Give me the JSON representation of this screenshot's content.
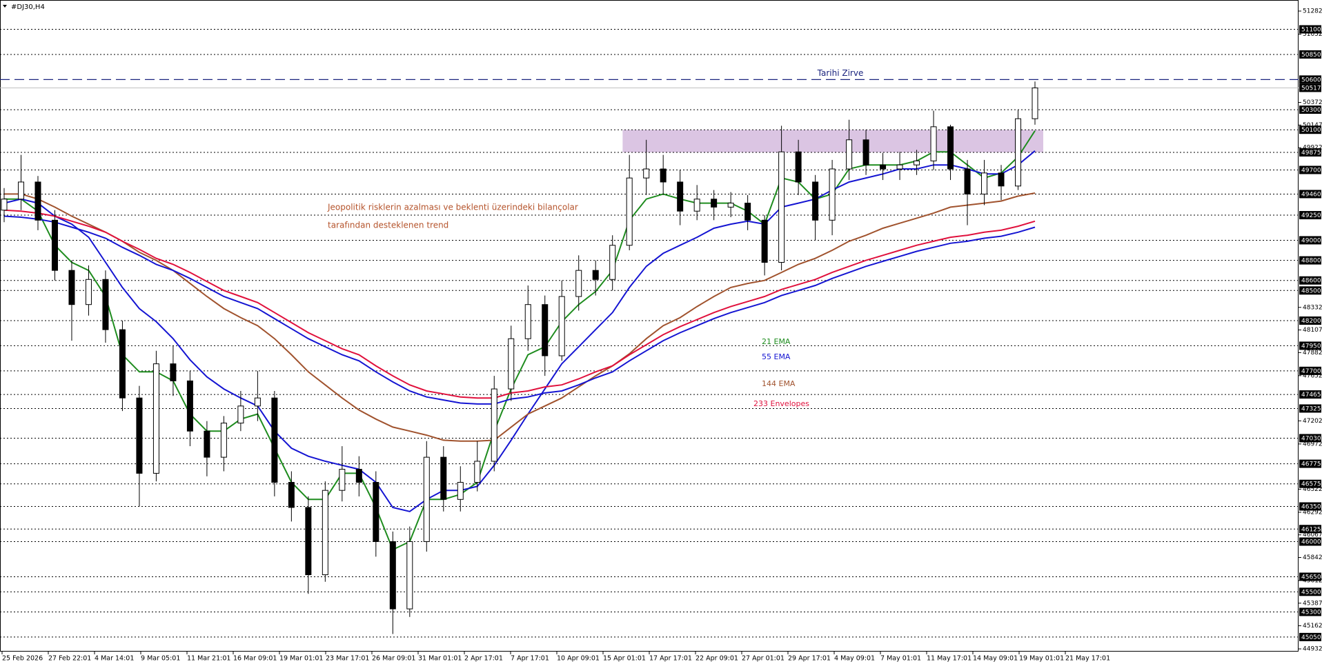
{
  "chart_data": {
    "type": "candlestick",
    "title": "#DJ30,H4",
    "annotations": [
      "Jeopolitik risklerin azalması ve beklenti üzerindeki bilançolar",
      "tarafından desteklenen trend"
    ],
    "peak": {
      "label": "Tarihi Zirve",
      "value": 50600,
      "color": "#1a237e"
    },
    "zone": {
      "from": 49875,
      "to": 50100,
      "color": "#d7bfe0"
    },
    "x_labels": [
      "25 Feb 2026",
      "27 Feb 22:01",
      "4 Mar 14:01",
      "9 Mar 05:01",
      "11 Mar 21:01",
      "16 Mar 09:01",
      "19 Mar 01:01",
      "23 Mar 17:01",
      "26 Mar 09:01",
      "31 Mar 01:01",
      "2 Apr 17:01",
      "7 Apr 17:01",
      "10 Apr 09:01",
      "15 Apr 01:01",
      "17 Apr 17:01",
      "22 Apr 09:01",
      "27 Apr 01:01",
      "29 Apr 17:01",
      "4 May 09:01",
      "7 May 01:01",
      "11 May 17:01",
      "14 May 09:01",
      "19 May 01:01",
      "21 May 17:01"
    ],
    "ylim": [
      44905,
      51392
    ],
    "yticks": [
      51282,
      51052,
      50372,
      50147,
      49922,
      48332,
      48107,
      47882,
      47652,
      47202,
      46972,
      46522,
      46292,
      46067,
      45842,
      45612,
      45387,
      45162,
      44932
    ],
    "levels": [
      51100,
      50850,
      50300,
      50100,
      49875,
      49700,
      49460,
      49250,
      49000,
      48800,
      48600,
      48500,
      48200,
      47950,
      47700,
      47465,
      47325,
      47030,
      46775,
      46575,
      46350,
      46125,
      46000,
      45650,
      45500,
      45300,
      45050
    ],
    "open": [
      49300,
      49410,
      49580,
      49200,
      48700,
      48360,
      48610,
      48110,
      47430,
      46680,
      47770,
      47600,
      47100,
      46840,
      47180,
      47350,
      47430,
      46590,
      46340,
      45670,
      46510,
      46720,
      46590,
      46000,
      45330,
      46000,
      46840,
      46420,
      46590,
      46800,
      47520,
      48020,
      48360,
      47850,
      48440,
      48700,
      48610,
      48950,
      49620,
      49710,
      49580,
      49290,
      49410,
      49330,
      49370,
      49200,
      48780,
      49880,
      49580,
      49200,
      49710,
      50000,
      49750,
      49710,
      49750,
      49790,
      50130,
      49710,
      49460,
      49670,
      49540,
      50210
    ],
    "high": [
      49520,
      49850,
      49640,
      49300,
      48800,
      48750,
      48700,
      48200,
      47550,
      47900,
      47950,
      47700,
      47200,
      47250,
      47500,
      47700,
      47500,
      46700,
      46450,
      46600,
      46950,
      46850,
      46700,
      46100,
      46150,
      47000,
      46950,
      46750,
      47000,
      47650,
      48150,
      48550,
      48450,
      48600,
      48850,
      48800,
      49050,
      49850,
      50000,
      49850,
      49700,
      49550,
      49500,
      49480,
      49450,
      49250,
      50140,
      50000,
      49650,
      49800,
      50200,
      50100,
      49870,
      49880,
      49900,
      50290,
      50150,
      49800,
      49800,
      49750,
      50300,
      50580
    ],
    "low": [
      49180,
      49300,
      49100,
      48600,
      48000,
      48250,
      47980,
      47300,
      46350,
      46600,
      47450,
      46950,
      46650,
      46700,
      47100,
      47200,
      46450,
      46200,
      45480,
      45600,
      46400,
      46450,
      45850,
      45080,
      45250,
      45900,
      46300,
      46300,
      46500,
      46700,
      47400,
      47900,
      47650,
      47800,
      48300,
      48450,
      48500,
      48900,
      49450,
      49450,
      49150,
      49200,
      49200,
      49230,
      49100,
      48650,
      48700,
      49450,
      49000,
      49050,
      49600,
      49650,
      49600,
      49600,
      49650,
      49700,
      49600,
      49150,
      49350,
      49400,
      49500,
      50150
    ],
    "close": [
      49410,
      49580,
      49200,
      48700,
      48360,
      48610,
      48110,
      47430,
      46680,
      47770,
      47600,
      47100,
      46840,
      47180,
      47350,
      47430,
      46590,
      46340,
      45670,
      46510,
      46720,
      46590,
      46000,
      45330,
      46000,
      46840,
      46420,
      46590,
      46800,
      47520,
      48020,
      48360,
      47850,
      48440,
      48700,
      48610,
      48950,
      49620,
      49710,
      49580,
      49290,
      49410,
      49330,
      49370,
      49200,
      48780,
      49880,
      49580,
      49200,
      49710,
      50000,
      49750,
      49710,
      49750,
      49790,
      50130,
      49710,
      49460,
      49670,
      49540,
      50210,
      50517
    ],
    "series": [
      {
        "name": "21 EMA",
        "color": "#1e8c1e",
        "values": [
          49410,
          49410,
          49290,
          48950,
          48780,
          48700,
          48440,
          47860,
          47690,
          47690,
          47600,
          47270,
          47100,
          47100,
          47220,
          47270,
          46930,
          46590,
          46420,
          46420,
          46680,
          46680,
          46340,
          45920,
          46000,
          46420,
          46420,
          46470,
          46590,
          47100,
          47520,
          47860,
          47940,
          48190,
          48360,
          48490,
          48700,
          49200,
          49410,
          49460,
          49410,
          49370,
          49370,
          49370,
          49290,
          49160,
          49620,
          49580,
          49410,
          49460,
          49710,
          49750,
          49750,
          49750,
          49790,
          49880,
          49880,
          49750,
          49620,
          49670,
          49830,
          50090
        ]
      },
      {
        "name": "55 EMA",
        "color": "#1414d2",
        "values": [
          49370,
          49410,
          49370,
          49240,
          49160,
          49030,
          48780,
          48530,
          48320,
          48190,
          48020,
          47810,
          47640,
          47520,
          47430,
          47350,
          47100,
          46930,
          46850,
          46800,
          46760,
          46720,
          46590,
          46340,
          46300,
          46420,
          46510,
          46510,
          46550,
          46760,
          47010,
          47270,
          47520,
          47770,
          47940,
          48110,
          48280,
          48530,
          48740,
          48870,
          48950,
          49030,
          49120,
          49160,
          49190,
          49160,
          49330,
          49370,
          49410,
          49500,
          49580,
          49620,
          49660,
          49710,
          49710,
          49750,
          49750,
          49710,
          49660,
          49660,
          49750,
          49890
        ]
      },
      {
        "name": "144 EMA",
        "color": "#a0522d",
        "values": [
          49460,
          49460,
          49410,
          49330,
          49240,
          49160,
          49080,
          48990,
          48880,
          48800,
          48700,
          48570,
          48440,
          48320,
          48230,
          48150,
          48020,
          47860,
          47690,
          47560,
          47430,
          47310,
          47220,
          47140,
          47100,
          47060,
          47010,
          47000,
          47000,
          47010,
          47140,
          47270,
          47350,
          47430,
          47540,
          47650,
          47750,
          47870,
          48020,
          48150,
          48230,
          48340,
          48440,
          48530,
          48570,
          48600,
          48680,
          48760,
          48820,
          48900,
          48990,
          49050,
          49120,
          49170,
          49220,
          49270,
          49330,
          49350,
          49370,
          49390,
          49440,
          49470
        ]
      },
      {
        "name": "233 Envelopes",
        "color": "#e0103c",
        "lower_color": "#1414d2",
        "values": [
          49300,
          49290,
          49270,
          49240,
          49190,
          49140,
          49080,
          48990,
          48910,
          48820,
          48760,
          48680,
          48590,
          48500,
          48440,
          48380,
          48280,
          48180,
          48080,
          48000,
          47920,
          47860,
          47750,
          47650,
          47560,
          47500,
          47470,
          47440,
          47430,
          47430,
          47480,
          47500,
          47540,
          47560,
          47620,
          47690,
          47750,
          47860,
          47960,
          48060,
          48140,
          48210,
          48280,
          48340,
          48390,
          48440,
          48510,
          48560,
          48610,
          48680,
          48740,
          48800,
          48850,
          48900,
          48950,
          48990,
          49030,
          49050,
          49080,
          49100,
          49140,
          49190
        ],
        "lower": [
          49240,
          49230,
          49210,
          49180,
          49130,
          49080,
          49020,
          48930,
          48850,
          48760,
          48700,
          48620,
          48530,
          48440,
          48380,
          48320,
          48220,
          48120,
          48020,
          47940,
          47860,
          47800,
          47690,
          47590,
          47500,
          47440,
          47410,
          47380,
          47370,
          47370,
          47420,
          47440,
          47480,
          47500,
          47560,
          47630,
          47690,
          47800,
          47900,
          48000,
          48080,
          48150,
          48220,
          48280,
          48330,
          48380,
          48450,
          48500,
          48550,
          48620,
          48680,
          48740,
          48790,
          48840,
          48890,
          48930,
          48970,
          48990,
          49020,
          49040,
          49080,
          49130
        ]
      }
    ]
  }
}
